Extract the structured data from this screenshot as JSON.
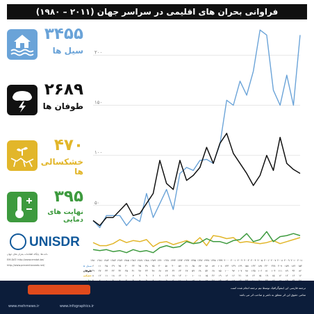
{
  "title": "فراوانی بحران های اقلیمی در سراسر جهان (۲۰۱۱ – ۱۹۸۰)",
  "stats": [
    {
      "number": "۳۴۵۵",
      "label": "سیل ها",
      "color": "#6aa3d8",
      "icon": "flood-house-icon"
    },
    {
      "number": "۲۶۸۹",
      "label": "طوفان ها",
      "color": "#111111",
      "icon": "storm-cloud-icon"
    },
    {
      "number": "۴۷۰",
      "label": "خشکسالی ها",
      "color": "#e2b62a",
      "icon": "drought-icon"
    },
    {
      "number": "۳۹۵",
      "label": "نهایت های دمایی",
      "color": "#3d9a3e",
      "icon": "thermometer-icon"
    }
  ],
  "unisdr": "UNISDR",
  "notes": {
    "credit": "داده ها: پایگاه اطلاعات بحران های جهان",
    "source": "EM-DAT: http://www.emdat.be/",
    "url": "http://www.preventionweb.net/"
  },
  "table_labels": [
    "سیل ها",
    "طوفان ها",
    "خشکسالی ها",
    "نهایت های دمایی"
  ],
  "footer": {
    "line1": "ترجمه فارسی این اینفوگرافیک توسط تیم ترجمه انجام شده است",
    "line2": "تمامی حقوق این اثر متعلق به ناشر و صاحب اثر می باشد",
    "site1": "www.mehrnews.ir",
    "site2": "www.infographics.ir"
  },
  "chart_data": {
    "type": "line",
    "x": [
      1980,
      1981,
      1982,
      1983,
      1984,
      1985,
      1986,
      1987,
      1988,
      1989,
      1990,
      1991,
      1992,
      1993,
      1994,
      1995,
      1996,
      1997,
      1998,
      1999,
      2000,
      2001,
      2002,
      2003,
      2004,
      2005,
      2006,
      2007,
      2008,
      2009,
      2010,
      2011
    ],
    "x_tick_labels": [
      "۱۹۸۰",
      "۱۹۸۱",
      "۱۹۸۲",
      "۱۹۸۳",
      "۱۹۸۴",
      "۱۹۸۵",
      "۱۹۸۶",
      "۱۹۸۷",
      "۱۹۸۸",
      "۱۹۸۹",
      "۱۹۹۰",
      "۱۹۹۱",
      "۱۹۹۲",
      "۱۹۹۳",
      "۱۹۹۴",
      "۱۹۹۵",
      "۱۹۹۶",
      "۱۹۹۷",
      "۱۹۹۸",
      "۱۹۹۹",
      "۲۰۰۰",
      "۲۰۰۱",
      "۲۰۰۲",
      "۲۰۰۳",
      "۲۰۰۴",
      "۲۰۰۵",
      "۲۰۰۶",
      "۲۰۰۷",
      "۲۰۰۸",
      "۲۰۰۹",
      "۲۰۱۰",
      "۲۰۱۱"
    ],
    "ylim": [
      0,
      230
    ],
    "y_ticks": [
      50,
      100,
      150,
      200
    ],
    "y_tick_labels": [
      "۵۰",
      "۱۰۰",
      "۱۵۰",
      "۲۰۰"
    ],
    "grid": true,
    "series": [
      {
        "name": "سیل ها",
        "color": "#6aa3d8",
        "values": [
          35,
          28,
          40,
          40,
          40,
          30,
          38,
          34,
          62,
          38,
          52,
          66,
          46,
          82,
          88,
          85,
          95,
          96,
          92,
          111,
          155,
          150,
          174,
          160,
          184,
          225,
          220,
          165,
          150,
          180,
          150,
          220
        ]
      },
      {
        "name": "طوفان ها",
        "color": "#111111",
        "values": [
          35,
          30,
          38,
          38,
          45,
          52,
          40,
          42,
          52,
          62,
          95,
          72,
          66,
          95,
          75,
          80,
          88,
          108,
          92,
          112,
          122,
          102,
          92,
          82,
          70,
          80,
          100,
          85,
          118,
          92,
          86,
          82
        ]
      },
      {
        "name": "خشکسالی ها",
        "color": "#e2b62a",
        "values": [
          13,
          10,
          10,
          12,
          16,
          13,
          15,
          14,
          16,
          9,
          13,
          14,
          11,
          13,
          15,
          12,
          18,
          10,
          20,
          19,
          17,
          18,
          13,
          14,
          13,
          12,
          13,
          15,
          12,
          14,
          16,
          18
        ]
      },
      {
        "name": "نهایت های دمایی",
        "color": "#3d9a3e",
        "values": [
          6,
          5,
          6,
          4,
          5,
          3,
          6,
          4,
          5,
          3,
          8,
          10,
          8,
          9,
          14,
          12,
          13,
          17,
          14,
          14,
          12,
          15,
          16,
          22,
          14,
          16,
          24,
          14,
          19,
          20,
          22,
          20
        ]
      }
    ],
    "table": [
      [
        "۶",
        "۱۱",
        "۲۵",
        "۲۹",
        "۲۵",
        "۲۰",
        "۲۳",
        "۲۵",
        "۳۸",
        "۲۵",
        "۴۰",
        "۵۱",
        "۴۰",
        "۵۷",
        "۶۱",
        "۶۵",
        "۷۷",
        "۷۸",
        "۸۷",
        "۱۰۸",
        "۱۴۳",
        "۱۳۹",
        "۱۶۹",
        "۱۵۸",
        "۱۳۲",
        "۱۸۷",
        "۲۲۰",
        "۲۲۸",
        "۲۰۷",
        "۱۵۹",
        "۱۸۲",
        "۱۵۲"
      ],
      [
        "۲۹",
        "۲۷",
        "۳۳",
        "۴۲",
        "۴۲",
        "۴۵",
        "۳۱",
        "۳۸",
        "۴۳",
        "۴۸",
        "۶۸",
        "۷۷",
        "۶۴",
        "۶۳",
        "۶۷",
        "۵۹",
        "۶۸",
        "۵۲",
        "۶۸",
        "۸۵",
        "۱۰۰",
        "۹۷",
        "۱۰۷",
        "۷۸",
        "۱۲۵",
        "۱۰۶",
        "۸۱",
        "۱۰۴",
        "۱۱۱",
        "۸۹",
        "۹۴",
        "۸۶"
      ],
      [
        "۸",
        "۱۲",
        "۱۱",
        "۱۸",
        "۱۳",
        "۱۰",
        "۷",
        "۲",
        "۹",
        "۶",
        "۷",
        "۱۳",
        "۱۷",
        "۱۳",
        "۱۰",
        "۱۰",
        "۱۱",
        "۱۵",
        "۲۶",
        "۱۹",
        "۱۶",
        "۱۶",
        "۲۱",
        "۱۷",
        "۱۴",
        "۱۵",
        "۱۹",
        "۱۵",
        "۱۶",
        "۱۲",
        "۱۶",
        "۱۶"
      ],
      [
        "۴",
        "۲",
        "۱",
        "۴",
        "۲",
        "۴",
        "۳",
        "۷",
        "۹",
        "۴",
        "۱۰",
        "۵",
        "۵",
        "۱۱",
        "۶",
        "۱۵",
        "۸",
        "۱۷",
        "۲۶",
        "۱۹",
        "۱۹",
        "۱۷",
        "۱۶",
        "۲۳",
        "۱۰",
        "۲۰",
        "۲۲",
        "۱۵",
        "۱۸",
        "۱۹",
        "۲۴",
        "۲۶"
      ]
    ]
  }
}
